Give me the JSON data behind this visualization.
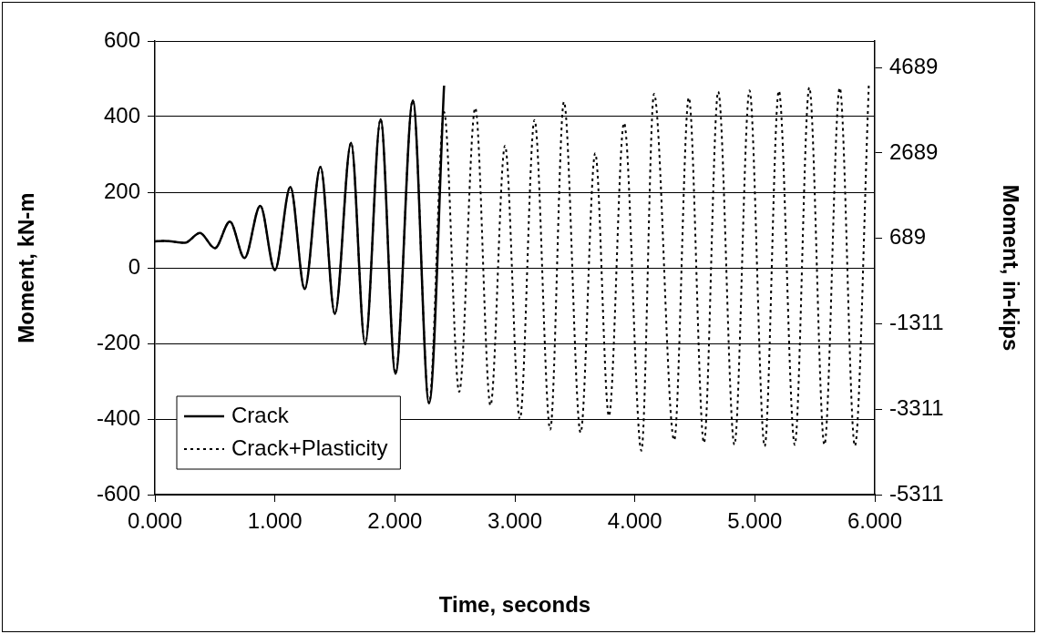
{
  "chart_data": {
    "type": "line",
    "xlabel": "Time, seconds",
    "ylabel": "Moment, kN-m",
    "y2label": "Moment, in-kips",
    "xlim": [
      0,
      6
    ],
    "xticks": [
      {
        "value": 0,
        "label": "0.000"
      },
      {
        "value": 1,
        "label": "1.000"
      },
      {
        "value": 2,
        "label": "2.000"
      },
      {
        "value": 3,
        "label": "3.000"
      },
      {
        "value": 4,
        "label": "4.000"
      },
      {
        "value": 5,
        "label": "5.000"
      },
      {
        "value": 6,
        "label": "6.000"
      }
    ],
    "ylim": [
      -600,
      600
    ],
    "yticks": [
      -600,
      -400,
      -200,
      0,
      200,
      400,
      600
    ],
    "y2lim": [
      -5311,
      5311
    ],
    "y2ticks": [
      -5311,
      -3311,
      -1311,
      689,
      2689,
      4689
    ],
    "grid": "y",
    "legend": "bottom left",
    "marker": "none",
    "series": [
      {
        "name": "Crack",
        "color": "#000000",
        "line_style": "solid",
        "x": [
          0,
          0.08,
          0.25,
          0.375,
          0.5,
          0.625,
          0.747,
          0.878,
          1.0,
          1.129,
          1.248,
          1.38,
          1.5,
          1.635,
          1.752,
          1.881,
          2.005,
          2.15,
          2.285,
          2.41
        ],
        "values": [
          70,
          71,
          66,
          92,
          52,
          122,
          26,
          164,
          -6,
          214,
          -56,
          267,
          -122,
          331,
          -202,
          393,
          -280,
          443,
          -358,
          482
        ]
      },
      {
        "name": "Crack+Plasticity",
        "color": "#000000",
        "line_style": "dotted",
        "x": [
          0,
          0.08,
          0.25,
          0.375,
          0.5,
          0.625,
          0.747,
          0.878,
          1.0,
          1.129,
          1.248,
          1.38,
          1.5,
          1.635,
          1.752,
          1.881,
          2.005,
          2.15,
          2.285,
          2.41,
          2.536,
          2.67,
          2.797,
          2.918,
          3.042,
          3.164,
          3.295,
          3.409,
          3.548,
          3.67,
          3.784,
          3.91,
          4.055,
          4.16,
          4.328,
          4.45,
          4.576,
          4.695,
          4.83,
          4.956,
          5.082,
          5.2,
          5.333,
          5.454,
          5.58,
          5.708,
          5.834,
          5.95
        ],
        "values": [
          70,
          71,
          66,
          92,
          52,
          122,
          26,
          164,
          -6,
          214,
          -56,
          267,
          -122,
          331,
          -202,
          393,
          -280,
          443,
          -358,
          412,
          -328,
          423,
          -364,
          323,
          -400,
          391,
          -428,
          439,
          -436,
          303,
          -392,
          383,
          -484,
          460,
          -456,
          450,
          -463,
          466,
          -468,
          469,
          -472,
          468,
          -468,
          477,
          -468,
          476,
          -471,
          482
        ]
      }
    ]
  }
}
